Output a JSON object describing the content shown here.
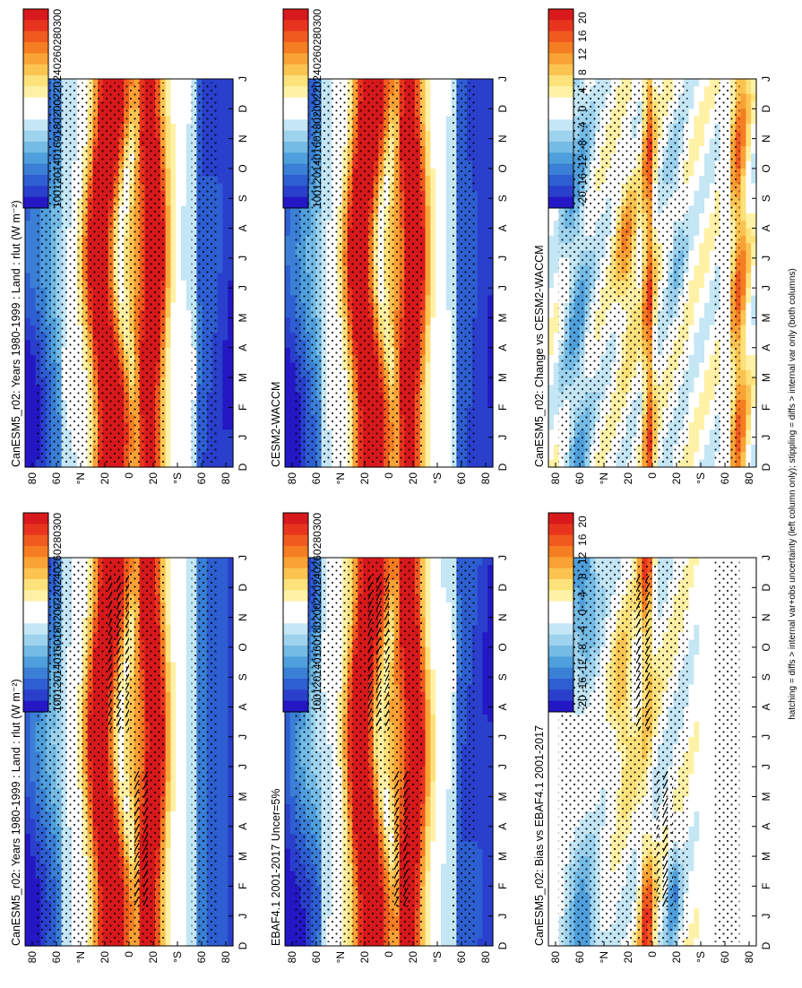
{
  "figure": {
    "footnote": "hatching = diffs > internal var+obs uncertainty (left column only); stippling = diffs > internal var only (both columns)"
  },
  "scales": {
    "abs": {
      "labels": [
        "300",
        "280",
        "260",
        "240",
        "220",
        "200",
        "180",
        "160",
        "140",
        "120",
        "100"
      ],
      "colors": [
        "#d7191c",
        "#e8341e",
        "#f05a1e",
        "#f57d22",
        "#f9a235",
        "#fbc451",
        "#fde17a",
        "#fff1a6",
        "#ffffff",
        "#ffffff",
        "#c4e6f5",
        "#9ed3ef",
        "#74bbe6",
        "#4f9fdc",
        "#3b7fd6",
        "#2e5fd2",
        "#2a3fcc",
        "#2417c4"
      ],
      "vmin": 100,
      "vmax": 310
    },
    "diff": {
      "labels": [
        "20",
        "16",
        "12",
        "8",
        "4",
        "0",
        "-4",
        "-8",
        "-12",
        "-16",
        "-20"
      ],
      "colors": [
        "#d7191c",
        "#e8341e",
        "#f05a1e",
        "#f57d22",
        "#f9a235",
        "#fbc451",
        "#fde17a",
        "#fff1a6",
        "#ffffff",
        "#ffffff",
        "#c4e6f5",
        "#9ed3ef",
        "#74bbe6",
        "#4f9fdc",
        "#3b7fd6",
        "#2e5fd2",
        "#2a3fcc",
        "#2417c4"
      ],
      "vmin": -22,
      "vmax": 22
    }
  },
  "chart_data": [
    {
      "type": "heatmap",
      "id": "p1",
      "title": "CanESM5_r02: Years 1980-1999 : Land : rlut (W m⁻²)",
      "x_months": [
        "D",
        "J",
        "F",
        "M",
        "A",
        "M",
        "J",
        "J",
        "A",
        "S",
        "O",
        "N",
        "D",
        "J"
      ],
      "lat_ticks": [
        "80",
        "60",
        "°N",
        "20",
        "0",
        "20",
        "°S",
        "60",
        "80"
      ],
      "scale": "abs",
      "hatching": true,
      "stippling": true
    },
    {
      "type": "heatmap",
      "id": "p2",
      "title": "CanESM5_r02: Years 1980-1999 : Land : rlut (W m⁻²)",
      "x_months": [
        "D",
        "J",
        "F",
        "M",
        "A",
        "M",
        "J",
        "J",
        "A",
        "S",
        "O",
        "N",
        "D",
        "J"
      ],
      "lat_ticks": [
        "80",
        "60",
        "°N",
        "20",
        "0",
        "20",
        "°S",
        "60",
        "80"
      ],
      "scale": "abs",
      "hatching": false,
      "stippling": true
    },
    {
      "type": "heatmap",
      "id": "p3",
      "title": "EBAF4.1 2001-2017 Uncer=5%",
      "x_months": [
        "D",
        "J",
        "F",
        "M",
        "A",
        "M",
        "J",
        "J",
        "A",
        "S",
        "O",
        "N",
        "D",
        "J"
      ],
      "lat_ticks": [
        "80",
        "60",
        "°N",
        "20",
        "0",
        "20",
        "°S",
        "60",
        "80"
      ],
      "scale": "abs",
      "hatching": true,
      "stippling": true
    },
    {
      "type": "heatmap",
      "id": "p4",
      "title": "CESM2-WACCM",
      "x_months": [
        "D",
        "J",
        "F",
        "M",
        "A",
        "M",
        "J",
        "J",
        "A",
        "S",
        "O",
        "N",
        "D",
        "J"
      ],
      "lat_ticks": [
        "80",
        "60",
        "°N",
        "20",
        "0",
        "20",
        "°S",
        "60",
        "80"
      ],
      "scale": "abs",
      "hatching": false,
      "stippling": true
    },
    {
      "type": "heatmap",
      "id": "p5",
      "title": "CanESM5_r02: Bias vs EBAF4.1 2001-2017",
      "x_months": [
        "D",
        "J",
        "F",
        "M",
        "A",
        "M",
        "J",
        "J",
        "A",
        "S",
        "O",
        "N",
        "D",
        "J"
      ],
      "lat_ticks": [
        "80",
        "60",
        "°N",
        "20",
        "0",
        "20",
        "°S",
        "60",
        "80"
      ],
      "scale": "diff",
      "hatching": true,
      "stippling": true
    },
    {
      "type": "heatmap",
      "id": "p6",
      "title": "CanESM5_r02: Change vs CESM2-WACCM",
      "x_months": [
        "D",
        "J",
        "F",
        "M",
        "A",
        "M",
        "J",
        "J",
        "A",
        "S",
        "O",
        "N",
        "D",
        "J"
      ],
      "lat_ticks": [
        "80",
        "60",
        "°N",
        "20",
        "0",
        "20",
        "°S",
        "60",
        "80"
      ],
      "scale": "diff",
      "hatching": false,
      "stippling": true
    }
  ]
}
